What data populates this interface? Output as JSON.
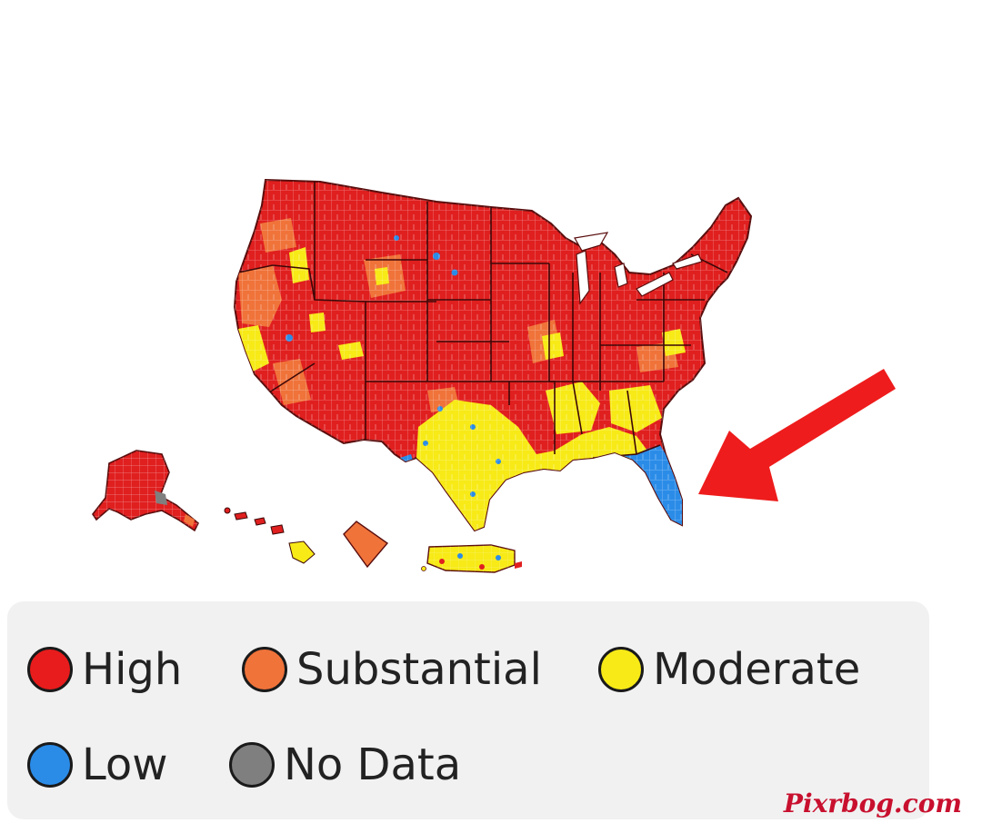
{
  "legend": {
    "items": [
      {
        "key": "high",
        "label": "High",
        "color": "#e81c1c"
      },
      {
        "key": "substantial",
        "label": "Substantial",
        "color": "#f0733a"
      },
      {
        "key": "moderate",
        "label": "Moderate",
        "color": "#f7ea17"
      },
      {
        "key": "low",
        "label": "Low",
        "color": "#2b8ce8"
      },
      {
        "key": "no_data",
        "label": "No Data",
        "color": "#7f7f7f"
      }
    ]
  },
  "map": {
    "default_level": "high",
    "highlighted_region": "Florida",
    "arrow_color": "#ee1c1c"
  },
  "watermark": "Pixrbog.com"
}
